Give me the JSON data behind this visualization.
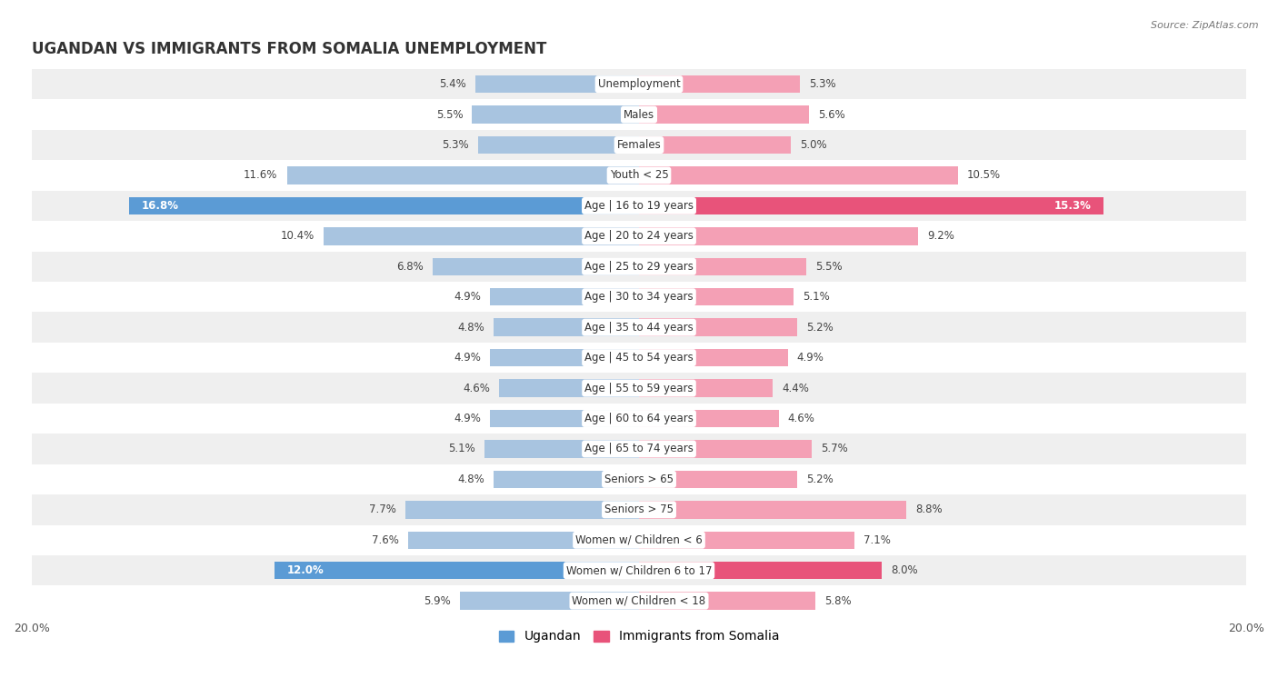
{
  "title": "UGANDAN VS IMMIGRANTS FROM SOMALIA UNEMPLOYMENT",
  "source": "Source: ZipAtlas.com",
  "categories": [
    "Unemployment",
    "Males",
    "Females",
    "Youth < 25",
    "Age | 16 to 19 years",
    "Age | 20 to 24 years",
    "Age | 25 to 29 years",
    "Age | 30 to 34 years",
    "Age | 35 to 44 years",
    "Age | 45 to 54 years",
    "Age | 55 to 59 years",
    "Age | 60 to 64 years",
    "Age | 65 to 74 years",
    "Seniors > 65",
    "Seniors > 75",
    "Women w/ Children < 6",
    "Women w/ Children 6 to 17",
    "Women w/ Children < 18"
  ],
  "ugandan": [
    5.4,
    5.5,
    5.3,
    11.6,
    16.8,
    10.4,
    6.8,
    4.9,
    4.8,
    4.9,
    4.6,
    4.9,
    5.1,
    4.8,
    7.7,
    7.6,
    12.0,
    5.9
  ],
  "somalia": [
    5.3,
    5.6,
    5.0,
    10.5,
    15.3,
    9.2,
    5.5,
    5.1,
    5.2,
    4.9,
    4.4,
    4.6,
    5.7,
    5.2,
    8.8,
    7.1,
    8.0,
    5.8
  ],
  "ugandan_color_normal": "#a8c4e0",
  "ugandan_color_highlight": "#5b9bd5",
  "somalia_color_normal": "#f4a0b5",
  "somalia_color_highlight": "#e8537a",
  "max_val": 20.0,
  "bar_height": 0.58,
  "bg_color_even": "#efefef",
  "bg_color_odd": "#ffffff",
  "highlight_rows": [
    4,
    16
  ],
  "title_fontsize": 12,
  "label_fontsize": 8.5,
  "value_fontsize": 8.5,
  "legend_fontsize": 10
}
